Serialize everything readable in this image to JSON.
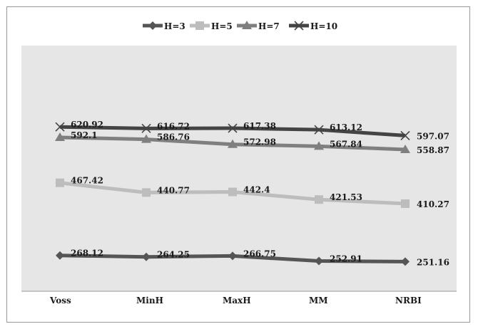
{
  "chart_data": {
    "type": "line",
    "categories": [
      "Voss",
      "MinH",
      "MaxH",
      "MM",
      "NRBI"
    ],
    "series": [
      {
        "name": "H=3",
        "marker": "diamond",
        "color": "#555555",
        "values": [
          268.12,
          264.25,
          266.75,
          252.91,
          251.16
        ],
        "labels": [
          "268.12",
          "264.25",
          "266.75",
          "252.91",
          "251.16"
        ]
      },
      {
        "name": "H=5",
        "marker": "square",
        "color": "#bdbdbd",
        "values": [
          467.42,
          440.77,
          442.4,
          421.53,
          410.27
        ],
        "labels": [
          "467.42",
          "440.77",
          "442.4",
          "421.53",
          "410.27"
        ]
      },
      {
        "name": "H=7",
        "marker": "triangle",
        "color": "#7f7f7f",
        "values": [
          592.1,
          586.76,
          572.98,
          567.84,
          558.87
        ],
        "labels": [
          "592.1",
          "586.76",
          "572.98",
          "567.84",
          "558.87"
        ]
      },
      {
        "name": "H=10",
        "marker": "x",
        "color": "#444444",
        "values": [
          620.92,
          616.72,
          617.38,
          613.12,
          597.07
        ],
        "labels": [
          "620.92",
          "616.72",
          "617.38",
          "613.12",
          "597.07"
        ]
      }
    ],
    "legend_position": "top-center",
    "plot_background": "#e6e6e6",
    "grid": false
  }
}
